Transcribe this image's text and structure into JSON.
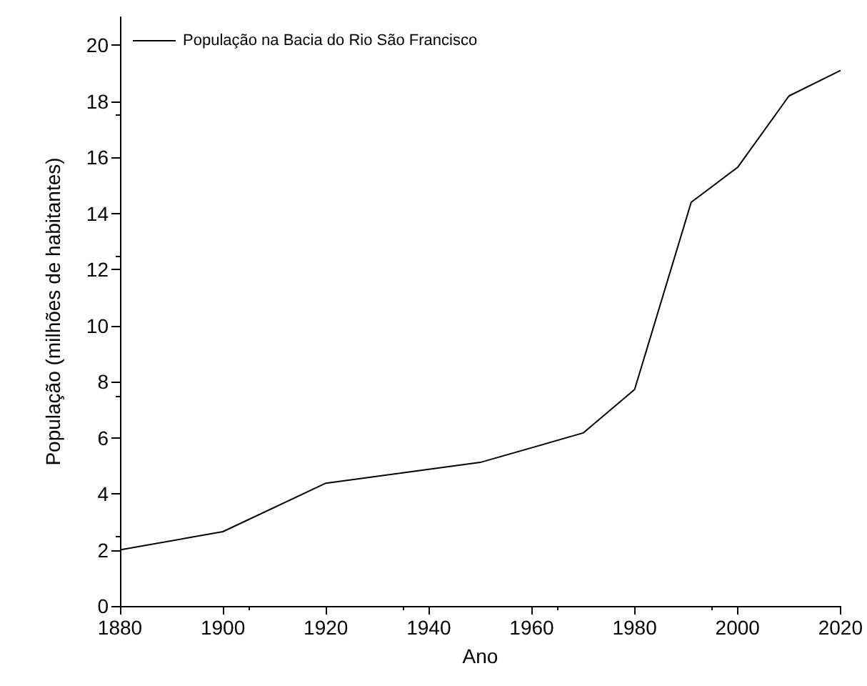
{
  "chart_data": {
    "type": "line",
    "xlabel": "Ano",
    "ylabel": "População (milhões de habitantes)",
    "x": [
      1880,
      1900,
      1920,
      1950,
      1970,
      1980,
      1991,
      2000,
      2010,
      2020
    ],
    "series": [
      {
        "name": "População na Bacia do Rio São Francisco",
        "color": "#000000",
        "values": [
          2.0,
          2.65,
          4.38,
          5.12,
          6.17,
          7.72,
          14.4,
          15.64,
          18.19,
          19.1
        ]
      }
    ],
    "xlim": [
      1880,
      2020
    ],
    "xticks": [
      1880,
      1900,
      1920,
      1940,
      1960,
      1980,
      2000,
      2020
    ],
    "ylim": [
      0,
      21
    ],
    "yticks": [
      0,
      2,
      4,
      6,
      8,
      10,
      12,
      14,
      16,
      18,
      20
    ],
    "grid": false,
    "legend": "top left",
    "marker": "none",
    "line_style": "solid"
  }
}
